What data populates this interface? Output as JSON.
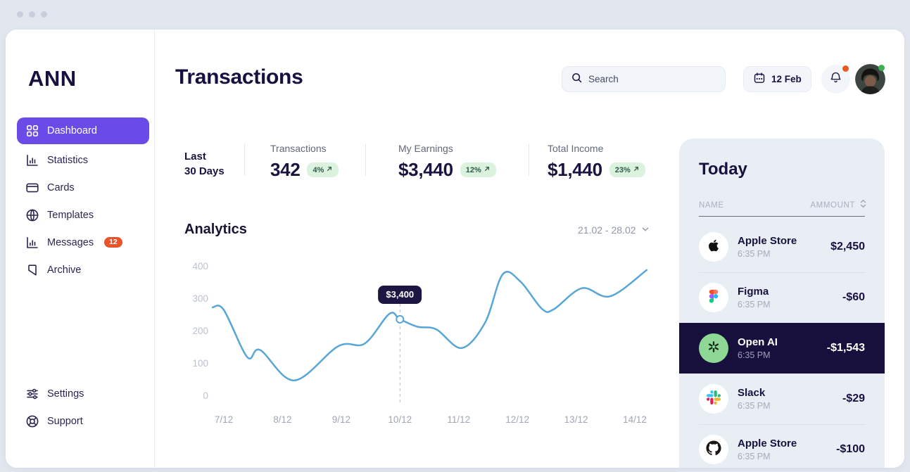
{
  "window": {
    "controls": [
      "dot",
      "dot",
      "dot"
    ]
  },
  "sidebar": {
    "logo": "ANN",
    "items": [
      {
        "label": "Dashboard",
        "icon": "grid-icon",
        "active": true
      },
      {
        "label": "Statistics",
        "icon": "bar-chart-icon",
        "active": false
      },
      {
        "label": "Cards",
        "icon": "credit-card-icon",
        "active": false
      },
      {
        "label": "Templates",
        "icon": "globe-icon",
        "active": false
      },
      {
        "label": "Messages",
        "icon": "bar-chart-icon",
        "active": false,
        "badge": "12"
      },
      {
        "label": "Archive",
        "icon": "bookmark-icon",
        "active": false
      }
    ],
    "footer_items": [
      {
        "label": "Settings",
        "icon": "sliders-icon"
      },
      {
        "label": "Support",
        "icon": "lifebuoy-icon"
      }
    ]
  },
  "header": {
    "title": "Transactions",
    "search_placeholder": "Search",
    "date_label": "12 Feb",
    "has_notification_dot": true,
    "has_status_dot": true
  },
  "stats": {
    "period_line1": "Last",
    "period_line2": "30 Days",
    "items": [
      {
        "label": "Transactions",
        "value": "342",
        "change": "4%"
      },
      {
        "label": "My Earnings",
        "value": "$3,440",
        "change": "12%"
      },
      {
        "label": "Total Income",
        "value": "$1,440",
        "change": "23%"
      }
    ]
  },
  "analytics": {
    "title": "Analytics",
    "range": "21.02 - 28.02"
  },
  "chart_data": {
    "type": "line",
    "title": "Analytics",
    "x_labels": [
      "7/12",
      "8/12",
      "9/12",
      "10/12",
      "11/12",
      "12/12",
      "13/12",
      "14/12"
    ],
    "y_ticks": [
      400,
      300,
      200,
      100,
      0
    ],
    "ylim": [
      0,
      400
    ],
    "grid": false,
    "legend": "none",
    "line_color": "#58A6D6",
    "series": [
      {
        "name": "earnings",
        "x_unit": "label_index",
        "points": [
          [
            -0.19,
            272
          ],
          [
            0,
            264
          ],
          [
            0.4,
            118
          ],
          [
            0.62,
            140
          ],
          [
            1.2,
            46
          ],
          [
            1.95,
            152
          ],
          [
            2.4,
            160
          ],
          [
            2.82,
            252
          ],
          [
            3.0,
            235
          ],
          [
            3.3,
            212
          ],
          [
            3.62,
            204
          ],
          [
            4.05,
            146
          ],
          [
            4.45,
            225
          ],
          [
            4.75,
            374
          ],
          [
            5.05,
            352
          ],
          [
            5.42,
            267
          ],
          [
            5.62,
            266
          ],
          [
            6.1,
            331
          ],
          [
            6.58,
            306
          ],
          [
            7.2,
            387
          ]
        ]
      }
    ],
    "highlight": {
      "x": 3,
      "x_label": "10/12",
      "value": 235,
      "label": "$3,400"
    }
  },
  "today": {
    "title": "Today",
    "columns": [
      "NAME",
      "AMMOUNT"
    ],
    "rows": [
      {
        "name": "Apple Store",
        "time": "6:35 PM",
        "amount": "$2,450",
        "icon": "apple-icon",
        "selected": false
      },
      {
        "name": "Figma",
        "time": "6:35 PM",
        "amount": "-$60",
        "icon": "figma-icon",
        "selected": false
      },
      {
        "name": "Open AI",
        "time": "6:35 PM",
        "amount": "-$1,543",
        "icon": "openai-icon",
        "selected": true
      },
      {
        "name": "Slack",
        "time": "6:35 PM",
        "amount": "-$29",
        "icon": "slack-icon",
        "selected": false
      },
      {
        "name": "Apple Store",
        "time": "6:35 PM",
        "amount": "-$100",
        "icon": "github-icon",
        "selected": false
      }
    ]
  },
  "colors": {
    "accent_purple": "#6A4BE8",
    "navy_text": "#16113F",
    "chart_line": "#58A6D6",
    "tooltip_bg": "#1D1542",
    "panel_bg": "#E9EDF4",
    "selected_row_bg": "#17103C",
    "badge_green_bg": "#DBF2DF",
    "badge_green_text": "#2F5B4A",
    "messages_badge": "#E8532B",
    "notification_dot": "#E85A1E",
    "status_dot": "#3FAE52",
    "openai_circle": "#8FD794"
  }
}
